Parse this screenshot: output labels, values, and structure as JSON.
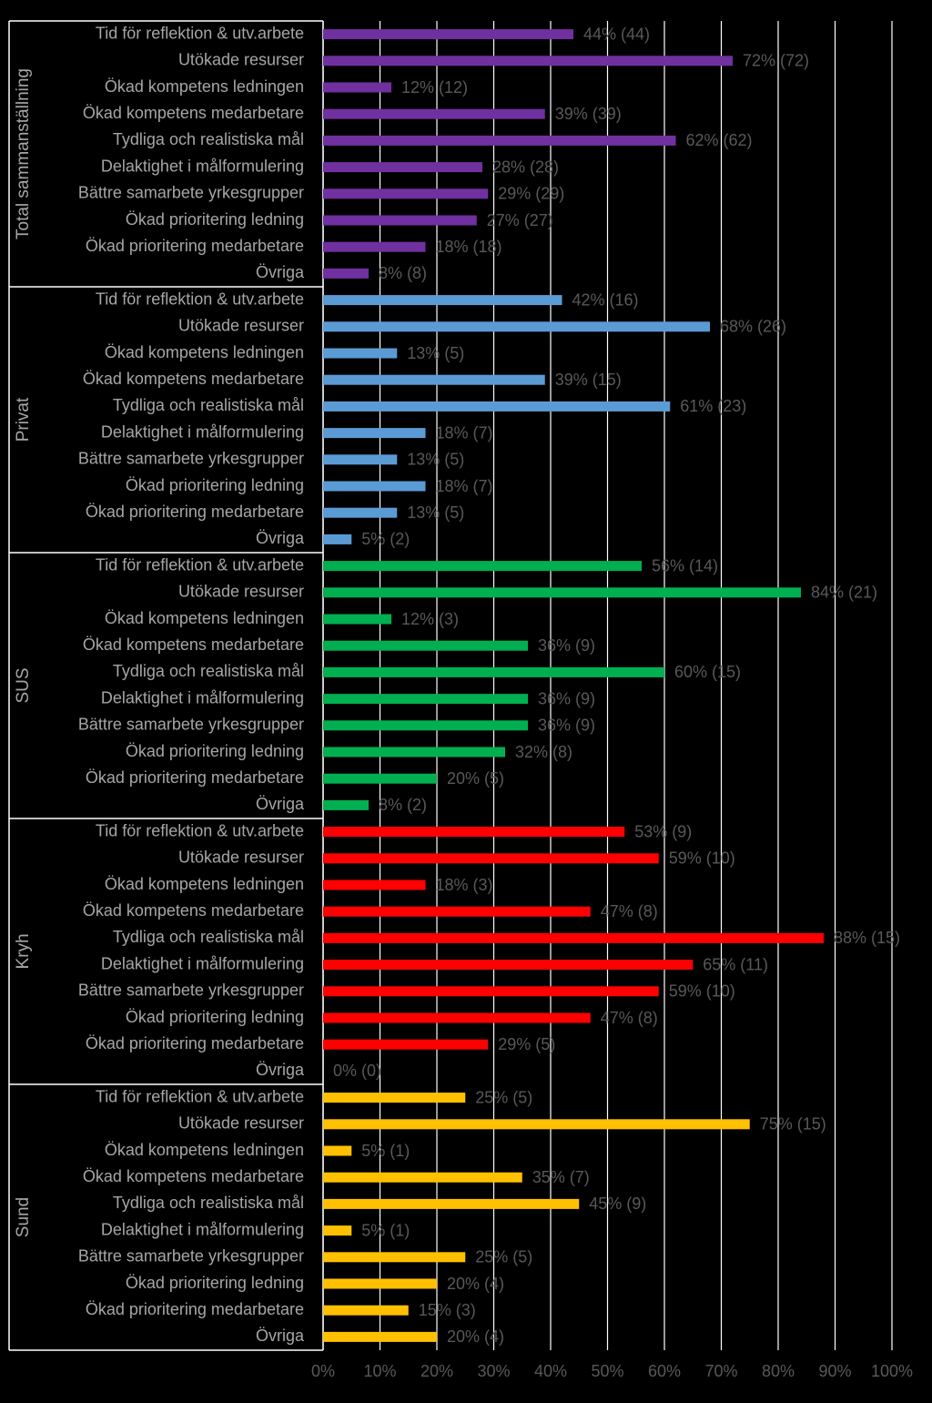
{
  "chart_data": {
    "type": "bar",
    "orientation": "horizontal",
    "grid": true,
    "xlim": [
      0,
      100
    ],
    "x_ticks": [
      "0%",
      "10%",
      "20%",
      "30%",
      "40%",
      "50%",
      "60%",
      "70%",
      "80%",
      "90%",
      "100%"
    ],
    "categories": [
      "Tid för reflektion & utv.arbete",
      "Utökade resurser",
      "Ökad kompetens ledningen",
      "Ökad kompetens medarbetare",
      "Tydliga och realistiska mål",
      "Delaktighet i målformulering",
      "Bättre samarbete yrkesgrupper",
      "Ökad prioritering ledning",
      "Ökad prioritering medarbetare",
      "Övriga"
    ],
    "groups": [
      {
        "name": "Total sammanställning",
        "color": "#7030A0",
        "values": [
          44,
          72,
          12,
          39,
          62,
          28,
          29,
          27,
          18,
          8
        ],
        "labels": [
          "44% (44)",
          "72% (72)",
          "12% (12)",
          "39% (39)",
          "62% (62)",
          "28% (28)",
          "29% (29)",
          "27% (27)",
          "18% (18)",
          "8% (8)"
        ]
      },
      {
        "name": "Privat",
        "color": "#5B9BD5",
        "values": [
          42,
          68,
          13,
          39,
          61,
          18,
          13,
          18,
          13,
          5
        ],
        "labels": [
          "42% (16)",
          "68% (26)",
          "13% (5)",
          "39% (15)",
          "61% (23)",
          "18% (7)",
          "13% (5)",
          "18% (7)",
          "13% (5)",
          "5% (2)"
        ]
      },
      {
        "name": "SUS",
        "color": "#00B050",
        "values": [
          56,
          84,
          12,
          36,
          60,
          36,
          36,
          32,
          20,
          8
        ],
        "labels": [
          "56% (14)",
          "84% (21)",
          "12% (3)",
          "36% (9)",
          "60% (15)",
          "36% (9)",
          "36% (9)",
          "32% (8)",
          "20% (5)",
          "8% (2)"
        ]
      },
      {
        "name": "Kryh",
        "color": "#FF0000",
        "values": [
          53,
          59,
          18,
          47,
          88,
          65,
          59,
          47,
          29,
          0
        ],
        "labels": [
          "53% (9)",
          "59% (10)",
          "18% (3)",
          "47% (8)",
          "88% (15)",
          "65% (11)",
          "59% (10)",
          "47% (8)",
          "29% (5)",
          "0% (0)"
        ]
      },
      {
        "name": "Sund",
        "color": "#FFC000",
        "values": [
          25,
          75,
          5,
          35,
          45,
          5,
          25,
          20,
          15,
          20
        ],
        "labels": [
          "25% (5)",
          "75% (15)",
          "5% (1)",
          "35% (7)",
          "45% (9)",
          "5% (1)",
          "25% (5)",
          "20% (4)",
          "15% (3)",
          "20% (4)"
        ]
      }
    ]
  }
}
